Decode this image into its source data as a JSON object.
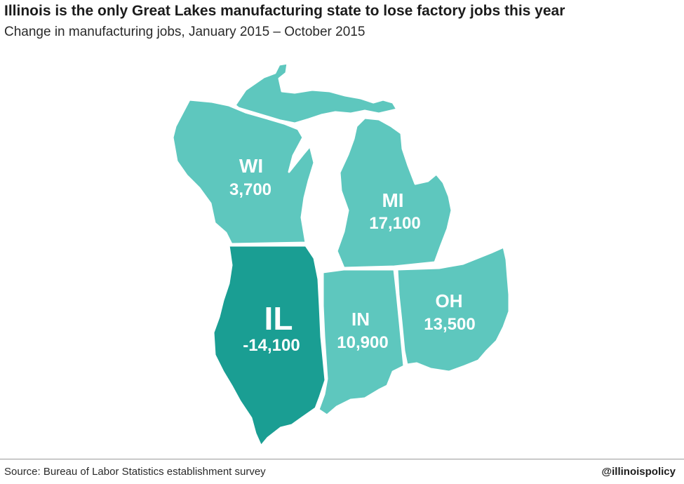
{
  "header": {
    "title": "Illinois is the only Great Lakes manufacturing state to lose factory jobs this year",
    "subtitle": "Change in manufacturing jobs, January 2015 – October 2015"
  },
  "colors": {
    "gain": "#5ec7be",
    "loss": "#1a9e93",
    "label": "#ffffff"
  },
  "states": [
    {
      "id": "WI",
      "code": "WI",
      "value_label": "3,700",
      "value": 3700
    },
    {
      "id": "MI",
      "code": "MI",
      "value_label": "17,100",
      "value": 17100
    },
    {
      "id": "IL",
      "code": "IL",
      "value_label": "-14,100",
      "value": -14100
    },
    {
      "id": "IN",
      "code": "IN",
      "value_label": "10,900",
      "value": 10900
    },
    {
      "id": "OH",
      "code": "OH",
      "value_label": "13,500",
      "value": 13500
    }
  ],
  "footer": {
    "source": "Source: Bureau of Labor Statistics establishment survey",
    "handle": "@illinoispolicy"
  }
}
